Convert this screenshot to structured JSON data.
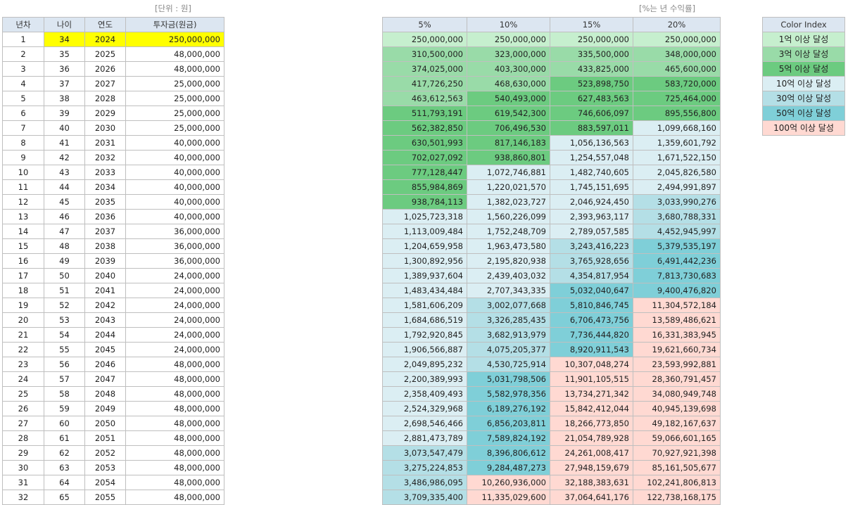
{
  "notes": {
    "unit": "[단위 : 원]",
    "rate": "[%는 년 수익률]"
  },
  "left_table": {
    "headers": [
      "년차",
      "나이",
      "연도",
      "투자금(원금)"
    ],
    "rows": [
      [
        "1",
        "34",
        "2024",
        "250,000,000"
      ],
      [
        "2",
        "35",
        "2025",
        "48,000,000"
      ],
      [
        "3",
        "36",
        "2026",
        "48,000,000"
      ],
      [
        "4",
        "37",
        "2027",
        "25,000,000"
      ],
      [
        "5",
        "38",
        "2028",
        "25,000,000"
      ],
      [
        "6",
        "39",
        "2029",
        "25,000,000"
      ],
      [
        "7",
        "40",
        "2030",
        "25,000,000"
      ],
      [
        "8",
        "41",
        "2031",
        "40,000,000"
      ],
      [
        "9",
        "42",
        "2032",
        "40,000,000"
      ],
      [
        "10",
        "43",
        "2033",
        "40,000,000"
      ],
      [
        "11",
        "44",
        "2034",
        "40,000,000"
      ],
      [
        "12",
        "45",
        "2035",
        "40,000,000"
      ],
      [
        "13",
        "46",
        "2036",
        "40,000,000"
      ],
      [
        "14",
        "47",
        "2037",
        "36,000,000"
      ],
      [
        "15",
        "48",
        "2038",
        "36,000,000"
      ],
      [
        "16",
        "49",
        "2039",
        "36,000,000"
      ],
      [
        "17",
        "50",
        "2040",
        "24,000,000"
      ],
      [
        "18",
        "51",
        "2041",
        "24,000,000"
      ],
      [
        "19",
        "52",
        "2042",
        "24,000,000"
      ],
      [
        "20",
        "53",
        "2043",
        "24,000,000"
      ],
      [
        "21",
        "54",
        "2044",
        "24,000,000"
      ],
      [
        "22",
        "55",
        "2045",
        "24,000,000"
      ],
      [
        "23",
        "56",
        "2046",
        "48,000,000"
      ],
      [
        "24",
        "57",
        "2047",
        "48,000,000"
      ],
      [
        "25",
        "58",
        "2048",
        "48,000,000"
      ],
      [
        "26",
        "59",
        "2049",
        "48,000,000"
      ],
      [
        "27",
        "60",
        "2050",
        "48,000,000"
      ],
      [
        "28",
        "61",
        "2051",
        "48,000,000"
      ],
      [
        "29",
        "62",
        "2052",
        "48,000,000"
      ],
      [
        "30",
        "63",
        "2053",
        "48,000,000"
      ],
      [
        "31",
        "64",
        "2054",
        "48,000,000"
      ],
      [
        "32",
        "65",
        "2055",
        "48,000,000"
      ]
    ]
  },
  "rate_table": {
    "headers": [
      "5%",
      "10%",
      "15%",
      "20%"
    ],
    "rows": [
      [
        "250,000,000",
        "250,000,000",
        "250,000,000",
        "250,000,000"
      ],
      [
        "310,500,000",
        "323,000,000",
        "335,500,000",
        "348,000,000"
      ],
      [
        "374,025,000",
        "403,300,000",
        "433,825,000",
        "465,600,000"
      ],
      [
        "417,726,250",
        "468,630,000",
        "523,898,750",
        "583,720,000"
      ],
      [
        "463,612,563",
        "540,493,000",
        "627,483,563",
        "725,464,000"
      ],
      [
        "511,793,191",
        "619,542,300",
        "746,606,097",
        "895,556,800"
      ],
      [
        "562,382,850",
        "706,496,530",
        "883,597,011",
        "1,099,668,160"
      ],
      [
        "630,501,993",
        "817,146,183",
        "1,056,136,563",
        "1,359,601,792"
      ],
      [
        "702,027,092",
        "938,860,801",
        "1,254,557,048",
        "1,671,522,150"
      ],
      [
        "777,128,447",
        "1,072,746,881",
        "1,482,740,605",
        "2,045,826,580"
      ],
      [
        "855,984,869",
        "1,220,021,570",
        "1,745,151,695",
        "2,494,991,897"
      ],
      [
        "938,784,113",
        "1,382,023,727",
        "2,046,924,450",
        "3,033,990,276"
      ],
      [
        "1,025,723,318",
        "1,560,226,099",
        "2,393,963,117",
        "3,680,788,331"
      ],
      [
        "1,113,009,484",
        "1,752,248,709",
        "2,789,057,585",
        "4,452,945,997"
      ],
      [
        "1,204,659,958",
        "1,963,473,580",
        "3,243,416,223",
        "5,379,535,197"
      ],
      [
        "1,300,892,956",
        "2,195,820,938",
        "3,765,928,656",
        "6,491,442,236"
      ],
      [
        "1,389,937,604",
        "2,439,403,032",
        "4,354,817,954",
        "7,813,730,683"
      ],
      [
        "1,483,434,484",
        "2,707,343,335",
        "5,032,040,647",
        "9,400,476,820"
      ],
      [
        "1,581,606,209",
        "3,002,077,668",
        "5,810,846,745",
        "11,304,572,184"
      ],
      [
        "1,684,686,519",
        "3,326,285,435",
        "6,706,473,756",
        "13,589,486,621"
      ],
      [
        "1,792,920,845",
        "3,682,913,979",
        "7,736,444,820",
        "16,331,383,945"
      ],
      [
        "1,906,566,887",
        "4,075,205,377",
        "8,920,911,543",
        "19,621,660,734"
      ],
      [
        "2,049,895,232",
        "4,530,725,914",
        "10,307,048,274",
        "23,593,992,881"
      ],
      [
        "2,200,389,993",
        "5,031,798,506",
        "11,901,105,515",
        "28,360,791,457"
      ],
      [
        "2,358,409,493",
        "5,582,978,356",
        "13,734,271,342",
        "34,080,949,748"
      ],
      [
        "2,524,329,968",
        "6,189,276,192",
        "15,842,412,044",
        "40,945,139,698"
      ],
      [
        "2,698,546,466",
        "6,856,203,811",
        "18,266,773,850",
        "49,182,167,637"
      ],
      [
        "2,881,473,789",
        "7,589,824,192",
        "21,054,789,928",
        "59,066,601,165"
      ],
      [
        "3,073,547,479",
        "8,396,806,612",
        "24,261,008,417",
        "70,927,921,398"
      ],
      [
        "3,275,224,853",
        "9,284,487,273",
        "27,948,159,679",
        "85,161,505,677"
      ],
      [
        "3,486,986,095",
        "10,260,936,000",
        "32,188,383,631",
        "102,241,806,813"
      ],
      [
        "3,709,335,400",
        "11,335,029,600",
        "37,064,641,176",
        "122,738,168,175"
      ]
    ]
  },
  "legend": {
    "title": "Color Index",
    "items": [
      {
        "label": "1억 이상 달성",
        "color": "#c6efce"
      },
      {
        "label": "3억 이상 달성",
        "color": "#99dba8"
      },
      {
        "label": "5억 이상 달성",
        "color": "#6ccb80"
      },
      {
        "label": "10억 이상 달성",
        "color": "#dbeef3"
      },
      {
        "label": "30억 이상 달성",
        "color": "#b4dfe6"
      },
      {
        "label": "50억 이상 달성",
        "color": "#7fcfd8"
      },
      {
        "label": "100억 이상 달성",
        "color": "#ffd9d2"
      }
    ]
  }
}
